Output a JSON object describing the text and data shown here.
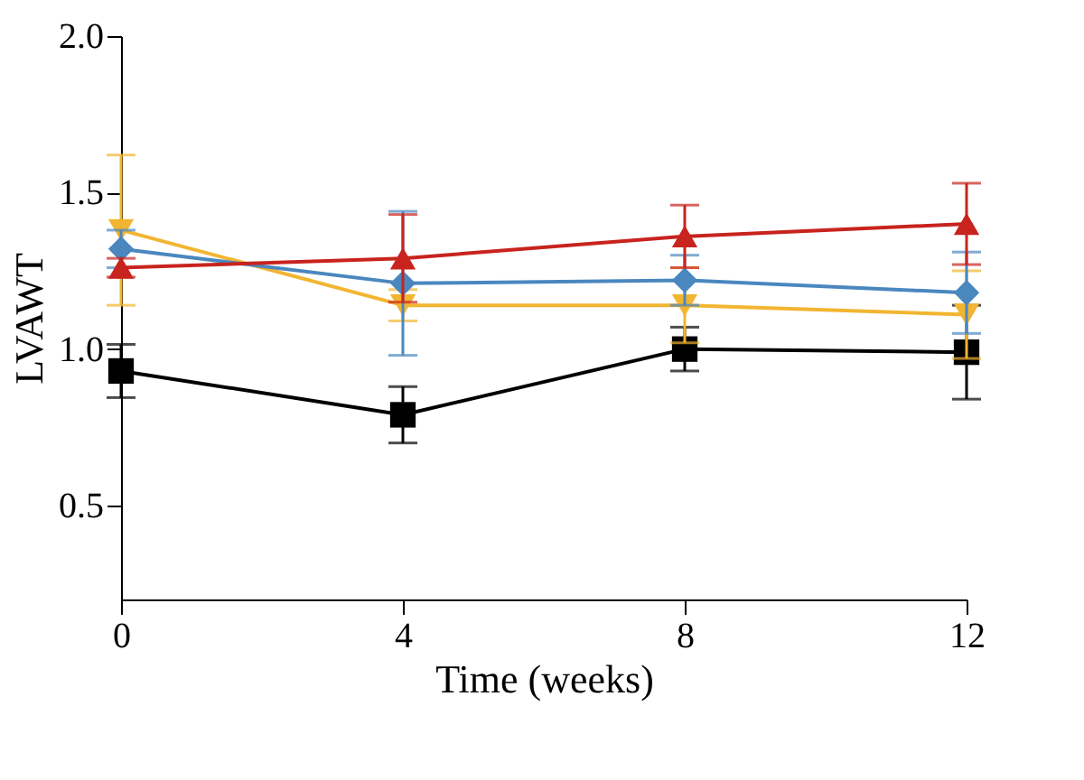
{
  "chart_data": {
    "type": "line",
    "xlabel": "Time (weeks)",
    "ylabel": "LVAWT",
    "x": [
      0,
      4,
      8,
      12
    ],
    "xlim": [
      0,
      12
    ],
    "xticks": [
      0,
      4,
      8,
      12
    ],
    "ylim": [
      0.2,
      2.0
    ],
    "yticks": [
      0.5,
      {
        "value": 1,
        "label": "1.0"
      },
      1.5,
      {
        "value": 2,
        "label": "2.0"
      }
    ],
    "grid": false,
    "line_style": "solid",
    "series": [
      {
        "color": "#000000",
        "marker": "square",
        "values": [
          0.93,
          0.79,
          1.0,
          0.99
        ],
        "errors": [
          0.085,
          0.09,
          0.07,
          0.15
        ]
      },
      {
        "color": "#f2b531",
        "marker": "triangle-down",
        "values": [
          1.38,
          1.14,
          1.14,
          1.11
        ],
        "errors": [
          0.24,
          0.05,
          0.12,
          0.14
        ]
      },
      {
        "color": "#4a87bf",
        "marker": "diamond",
        "values": [
          1.32,
          1.21,
          1.22,
          1.18
        ],
        "errors": [
          0.06,
          0.23,
          0.08,
          0.13
        ]
      },
      {
        "color": "#c8231e",
        "marker": "triangle",
        "values": [
          1.26,
          1.29,
          1.36,
          1.4
        ],
        "errors": [
          0.03,
          0.14,
          0.1,
          0.13
        ]
      }
    ]
  }
}
